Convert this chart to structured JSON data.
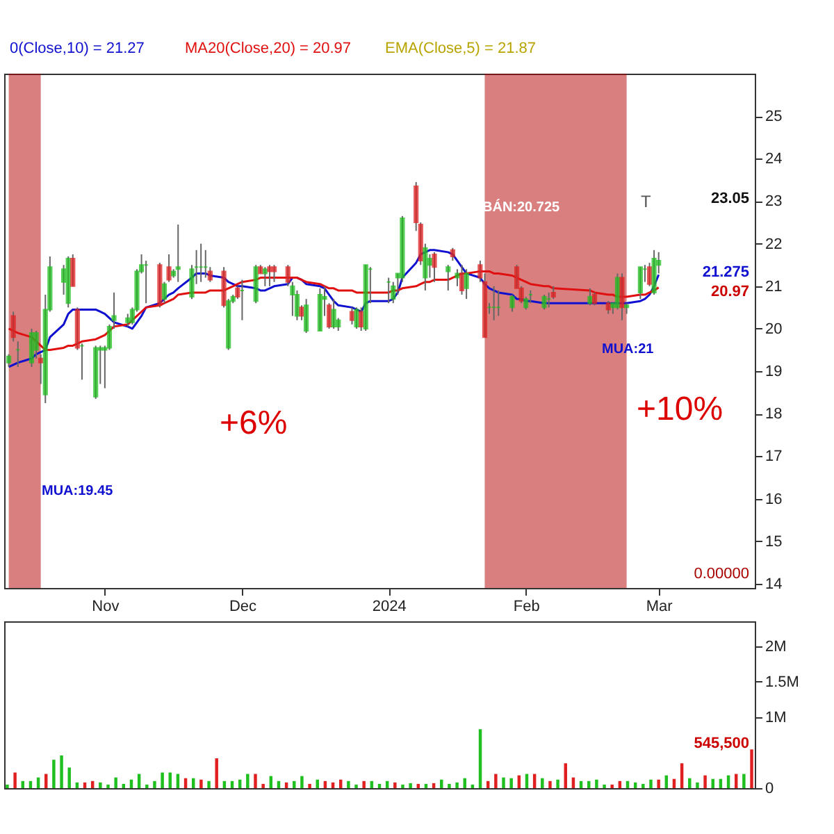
{
  "chart_data": [
    {
      "type": "candlestick",
      "legend": "top left",
      "x": [
        "2023-10-11",
        "2023-10-12",
        "2023-10-13",
        "2023-10-16",
        "2023-10-17",
        "2023-10-18",
        "2023-10-19",
        "2023-10-20",
        "2023-10-23",
        "2023-10-24",
        "2023-10-25",
        "2023-10-26",
        "2023-10-27",
        "2023-10-30",
        "2023-10-31",
        "2023-11-01",
        "2023-11-02",
        "2023-11-03",
        "2023-11-06",
        "2023-11-07",
        "2023-11-08",
        "2023-11-09",
        "2023-11-10",
        "2023-11-13",
        "2023-11-14",
        "2023-11-15",
        "2023-11-16",
        "2023-11-17",
        "2023-11-20",
        "2023-11-21",
        "2023-11-22",
        "2023-11-23",
        "2023-11-24",
        "2023-11-27",
        "2023-11-28",
        "2023-11-29",
        "2023-11-30",
        "2023-12-01",
        "2023-12-04",
        "2023-12-05",
        "2023-12-06",
        "2023-12-07",
        "2023-12-08",
        "2023-12-11",
        "2023-12-12",
        "2023-12-13",
        "2023-12-14",
        "2023-12-15",
        "2023-12-18",
        "2023-12-19",
        "2023-12-20",
        "2023-12-21",
        "2023-12-22",
        "2023-12-25",
        "2023-12-26",
        "2023-12-27",
        "2023-12-28",
        "2023-12-29",
        "2024-01-02",
        "2024-01-03",
        "2024-01-04",
        "2024-01-05",
        "2024-01-08",
        "2024-01-09",
        "2024-01-10",
        "2024-01-11",
        "2024-01-12",
        "2024-01-15",
        "2024-01-16",
        "2024-01-17",
        "2024-01-18",
        "2024-01-19",
        "2024-01-22",
        "2024-01-23",
        "2024-01-24",
        "2024-01-25",
        "2024-01-26",
        "2024-01-29",
        "2024-01-30",
        "2024-01-31",
        "2024-02-01",
        "2024-02-02",
        "2024-02-05",
        "2024-02-06",
        "2024-02-07",
        "2024-02-15",
        "2024-02-16",
        "2024-02-19",
        "2024-02-20",
        "2024-02-21",
        "2024-02-22",
        "2024-02-23",
        "2024-02-26",
        "2024-02-27",
        "2024-02-28",
        "2024-02-29",
        "2024-03-01"
      ],
      "ohlc": [
        [
          19.2,
          19.4,
          19.1,
          19.35
        ],
        [
          20.3,
          20.4,
          19.7,
          19.8
        ],
        [
          19.5,
          19.7,
          19.1,
          19.5
        ],
        [
          19.2,
          20.0,
          19.1,
          19.9
        ],
        [
          19.5,
          19.95,
          19.3,
          19.9
        ],
        [
          19.3,
          19.4,
          18.7,
          19.2
        ],
        [
          18.45,
          20.8,
          18.25,
          20.45
        ],
        [
          20.45,
          21.7,
          20.4,
          21.45
        ],
        [
          21.1,
          21.5,
          20.8,
          21.4
        ],
        [
          20.6,
          21.7,
          20.5,
          21.65
        ],
        [
          21.65,
          21.75,
          21.0,
          21.0
        ],
        [
          20.45,
          20.5,
          19.5,
          19.55
        ],
        [
          19.6,
          19.65,
          18.8,
          19.6
        ],
        [
          18.4,
          19.6,
          18.35,
          19.55
        ],
        [
          19.5,
          19.6,
          18.7,
          19.55
        ],
        [
          19.5,
          19.6,
          18.6,
          19.55
        ],
        [
          19.55,
          20.1,
          19.5,
          20.05
        ],
        [
          20.2,
          20.85,
          20.0,
          20.3
        ],
        [
          20.15,
          20.35,
          20.05,
          20.25
        ],
        [
          20.15,
          20.5,
          20.1,
          20.45
        ],
        [
          20.45,
          21.4,
          20.4,
          21.35
        ],
        [
          21.35,
          21.75,
          21.3,
          21.5
        ],
        [
          21.5,
          21.6,
          20.6,
          21.5
        ],
        [
          21.5,
          21.55,
          20.5,
          20.55
        ],
        [
          20.7,
          21.1,
          20.6,
          21.05
        ],
        [
          21.45,
          21.75,
          21.1,
          21.15
        ],
        [
          21.25,
          21.4,
          21.2,
          21.35
        ],
        [
          21.4,
          22.45,
          21.1,
          21.45
        ],
        [
          20.75,
          21.5,
          20.7,
          21.4
        ],
        [
          21.45,
          21.85,
          21.05,
          21.45
        ],
        [
          21.45,
          22.0,
          21.1,
          21.45
        ],
        [
          21.45,
          21.85,
          21.2,
          21.45
        ],
        [
          21.35,
          21.45,
          21.1,
          21.15
        ],
        [
          21.35,
          21.45,
          20.5,
          20.55
        ],
        [
          19.55,
          20.7,
          19.5,
          20.65
        ],
        [
          20.65,
          20.8,
          20.6,
          20.75
        ],
        [
          20.95,
          21.0,
          20.7,
          20.75
        ],
        [
          20.9,
          21.15,
          20.2,
          20.9
        ],
        [
          20.65,
          21.5,
          20.6,
          21.45
        ],
        [
          21.45,
          21.5,
          21.3,
          21.3
        ],
        [
          21.3,
          21.45,
          21.0,
          21.4
        ],
        [
          21.45,
          21.5,
          21.0,
          21.35
        ],
        [
          21.45,
          21.5,
          21.1,
          21.35
        ],
        [
          21.45,
          21.5,
          21.0,
          21.1
        ],
        [
          20.8,
          21.1,
          20.3,
          21.0
        ],
        [
          20.3,
          20.9,
          20.2,
          20.8
        ],
        [
          20.5,
          20.55,
          20.2,
          20.3
        ],
        [
          19.95,
          20.7,
          19.9,
          20.55
        ],
        [
          19.95,
          20.95,
          19.95,
          20.8
        ],
        [
          20.7,
          21.0,
          20.3,
          20.75
        ],
        [
          20.55,
          20.6,
          20.0,
          20.05
        ],
        [
          20.05,
          20.7,
          20.0,
          20.45
        ],
        [
          20.05,
          20.25,
          19.95,
          20.2
        ],
        [
          20.4,
          20.5,
          20.1,
          20.2
        ],
        [
          20.05,
          20.5,
          20.0,
          20.45
        ],
        [
          20.4,
          20.5,
          19.95,
          20.05
        ],
        [
          20.0,
          21.5,
          19.95,
          21.5
        ],
        [
          21.4,
          21.45,
          20.6,
          21.4
        ],
        [
          21.1,
          21.2,
          20.6,
          21.1
        ],
        [
          20.7,
          21.1,
          20.6,
          21.0
        ],
        [
          21.2,
          21.3,
          20.8,
          21.3
        ],
        [
          21.2,
          22.65,
          21.1,
          22.6
        ],
        [
          23.35,
          23.45,
          22.3,
          22.5
        ],
        [
          22.45,
          22.5,
          21.5,
          21.6
        ],
        [
          21.2,
          22.0,
          20.9,
          21.9
        ],
        [
          21.5,
          21.75,
          21.2,
          21.65
        ],
        [
          21.75,
          21.8,
          21.1,
          21.45
        ],
        [
          21.35,
          21.5,
          20.9,
          21.45
        ],
        [
          21.85,
          21.9,
          21.6,
          21.7
        ],
        [
          21.2,
          21.4,
          21.0,
          21.3
        ],
        [
          21.3,
          21.5,
          20.8,
          20.9
        ],
        [
          20.95,
          21.4,
          20.7,
          21.3
        ],
        [
          21.5,
          21.6,
          21.1,
          21.2
        ],
        [
          21.1,
          21.3,
          19.8,
          19.8
        ],
        [
          20.5,
          20.6,
          20.35,
          20.5
        ],
        [
          20.5,
          21.0,
          20.2,
          20.5
        ],
        [
          20.5,
          20.9,
          20.3,
          20.5
        ],
        [
          20.5,
          20.8,
          20.4,
          20.75
        ],
        [
          21.45,
          21.5,
          20.95,
          20.95
        ],
        [
          20.95,
          21.0,
          20.6,
          20.65
        ],
        [
          20.5,
          20.75,
          20.45,
          20.7
        ],
        [
          20.8,
          20.9,
          20.6,
          20.8
        ],
        [
          20.5,
          20.8,
          20.45,
          20.75
        ],
        [
          20.7,
          20.85,
          20.5,
          20.7
        ],
        [
          20.85,
          21.0,
          20.7,
          20.75
        ],
        [
          20.6,
          20.95,
          20.55,
          20.75
        ],
        [
          20.8,
          20.85,
          20.55,
          20.6
        ],
        [
          20.6,
          20.65,
          20.35,
          20.45
        ],
        [
          20.5,
          20.6,
          20.35,
          20.6
        ],
        [
          20.5,
          21.3,
          20.45,
          21.2
        ],
        [
          21.2,
          21.3,
          20.2,
          20.5
        ],
        [
          20.5,
          20.6,
          20.35,
          20.55
        ],
        [
          20.85,
          21.45,
          20.7,
          21.45
        ],
        [
          21.4,
          21.5,
          21.1,
          21.4
        ],
        [
          21.45,
          21.55,
          21.0,
          21.05
        ],
        [
          20.85,
          21.85,
          20.8,
          21.65
        ],
        [
          21.5,
          21.8,
          21.3,
          21.6
        ]
      ],
      "colors": [
        "#1fbf1f",
        "#e02020",
        "#1fbf1f",
        "#1fbf1f",
        "#1fbf1f",
        "#e02020",
        "#1fbf1f",
        "#1fbf1f",
        "#1fbf1f",
        "#1fbf1f",
        "#e02020",
        "#e02020",
        "#1fbf1f",
        "#1fbf1f",
        "#1fbf1f",
        "#1fbf1f",
        "#1fbf1f",
        "#1fbf1f",
        "#1fbf1f",
        "#1fbf1f",
        "#1fbf1f",
        "#1fbf1f",
        "#1fbf1f",
        "#e02020",
        "#1fbf1f",
        "#e02020",
        "#1fbf1f",
        "#1fbf1f",
        "#1fbf1f",
        "#1fbf1f",
        "#1fbf1f",
        "#1fbf1f",
        "#e02020",
        "#e02020",
        "#1fbf1f",
        "#1fbf1f",
        "#e02020",
        "#1fbf1f",
        "#1fbf1f",
        "#e02020",
        "#1fbf1f",
        "#e02020",
        "#e02020",
        "#e02020",
        "#1fbf1f",
        "#1fbf1f",
        "#e02020",
        "#1fbf1f",
        "#1fbf1f",
        "#1fbf1f",
        "#e02020",
        "#1fbf1f",
        "#1fbf1f",
        "#e02020",
        "#1fbf1f",
        "#e02020",
        "#1fbf1f",
        "#1fbf1f",
        "#1fbf1f",
        "#1fbf1f",
        "#1fbf1f",
        "#1fbf1f",
        "#e02020",
        "#e02020",
        "#1fbf1f",
        "#1fbf1f",
        "#e02020",
        "#1fbf1f",
        "#e02020",
        "#1fbf1f",
        "#e02020",
        "#1fbf1f",
        "#e02020",
        "#e02020",
        "#1fbf1f",
        "#1fbf1f",
        "#1fbf1f",
        "#1fbf1f",
        "#e02020",
        "#e02020",
        "#1fbf1f",
        "#1fbf1f",
        "#1fbf1f",
        "#1fbf1f",
        "#e02020",
        "#1fbf1f",
        "#e02020",
        "#e02020",
        "#1fbf1f",
        "#1fbf1f",
        "#e02020",
        "#1fbf1f",
        "#1fbf1f",
        "#1fbf1f",
        "#e02020",
        "#1fbf1f",
        "#1fbf1f"
      ],
      "series": [
        {
          "type": "line",
          "name": "0(Close,10) = 21.27",
          "color": "#1010d0",
          "values": [
            19.1,
            19.15,
            19.2,
            19.3,
            19.4,
            19.45,
            19.5,
            19.8,
            20.1,
            20.35,
            20.45,
            20.45,
            20.45,
            20.45,
            20.4,
            20.35,
            20.25,
            20.15,
            20.05,
            20.0,
            20.15,
            20.3,
            20.5,
            20.6,
            20.7,
            20.8,
            20.85,
            20.95,
            21.2,
            21.3,
            21.3,
            21.3,
            21.25,
            21.2,
            21.1,
            21.05,
            21.0,
            21.0,
            20.95,
            20.9,
            20.9,
            20.95,
            21.0,
            21.05,
            21.2,
            21.2,
            21.15,
            21.05,
            21.0,
            20.95,
            20.8,
            20.65,
            20.55,
            20.5,
            20.45,
            20.4,
            20.6,
            20.65,
            20.65,
            20.7,
            20.85,
            21.2,
            21.55,
            21.75,
            21.8,
            21.85,
            21.85,
            21.8,
            21.75,
            21.6,
            21.45,
            21.3,
            21.2,
            21.05,
            20.95,
            20.9,
            20.85,
            20.8,
            20.7,
            20.7,
            20.65,
            20.65,
            20.6,
            20.6,
            20.6,
            20.6,
            20.6,
            20.6,
            20.6,
            20.6,
            20.6,
            20.6,
            20.65,
            20.7,
            20.8,
            21.0,
            21.27
          ]
        },
        {
          "type": "line",
          "name": "MA20(Close,20) = 20.97",
          "color": "#e01010",
          "values": [
            20.0,
            19.95,
            19.9,
            19.8,
            19.7,
            19.6,
            19.5,
            19.5,
            19.55,
            19.6,
            19.6,
            19.65,
            19.7,
            19.75,
            19.8,
            19.85,
            19.95,
            20.05,
            20.1,
            20.2,
            20.3,
            20.4,
            20.5,
            20.55,
            20.6,
            20.65,
            20.7,
            20.8,
            20.85,
            20.85,
            20.85,
            20.85,
            20.9,
            20.9,
            20.95,
            21.0,
            21.05,
            21.1,
            21.15,
            21.2,
            21.2,
            21.2,
            21.2,
            21.2,
            21.2,
            21.2,
            21.15,
            21.1,
            21.05,
            21.0,
            20.95,
            20.95,
            20.9,
            20.9,
            20.85,
            20.85,
            20.85,
            20.85,
            20.85,
            20.9,
            20.9,
            20.95,
            21.0,
            21.05,
            21.1,
            21.1,
            21.15,
            21.15,
            21.2,
            21.25,
            21.3,
            21.3,
            21.35,
            21.35,
            21.35,
            21.3,
            21.3,
            21.25,
            21.2,
            21.15,
            21.1,
            21.05,
            21.0,
            21.0,
            20.95,
            20.9,
            20.85,
            20.8,
            20.8,
            20.75,
            20.75,
            20.75,
            20.8,
            20.8,
            20.85,
            20.9,
            20.97
          ]
        }
      ],
      "bands": [
        {
          "axis": "x",
          "from": "2023-10-11",
          "to": "2023-10-18",
          "color": "#b40000"
        },
        {
          "axis": "x",
          "from": "2024-01-23",
          "to": "2024-02-23",
          "color": "#b40000"
        }
      ],
      "annotations": [
        "EMA(Close,5) = 21.87",
        "+6%",
        "+10%",
        "T",
        "0.00000",
        "MUA:19.45",
        "BÁN:20.725",
        "MUA:21",
        "23.05",
        "21.275",
        "20.97"
      ],
      "xlim": [
        "2023-10-10",
        "2024-03-22"
      ],
      "ylim": [
        13.9,
        26
      ],
      "yticks": [
        14,
        15,
        16,
        17,
        18,
        19,
        20,
        21,
        22,
        23,
        24,
        25
      ],
      "xticks": [
        {
          "value": "2023-11-01",
          "label": "Nov"
        },
        {
          "value": "2023-12-01",
          "label": "Dec"
        },
        {
          "value": "2024-01-02",
          "label": "2024"
        },
        {
          "value": "2024-02-01",
          "label": "Feb"
        },
        {
          "value": "2024-03-01",
          "label": "Mar"
        }
      ]
    },
    {
      "type": "bar",
      "tick_labels": "y",
      "categories": [
        null,
        null,
        null,
        null,
        null,
        null,
        null,
        null,
        null,
        null,
        null,
        null,
        null,
        null,
        null,
        null,
        null,
        null,
        null,
        null,
        null,
        null,
        null,
        null,
        null,
        null,
        null,
        null,
        null,
        null,
        null,
        null,
        null,
        null,
        null,
        null,
        null,
        null,
        null,
        null,
        null,
        null,
        null,
        null,
        null,
        null,
        null,
        null,
        null,
        null,
        null,
        null,
        null,
        null,
        null,
        null,
        null,
        null,
        null,
        null,
        null,
        null,
        null,
        null,
        null,
        null,
        null,
        null,
        null,
        null,
        null,
        null,
        null,
        null,
        null,
        null,
        null,
        null,
        null,
        null,
        null,
        null,
        null,
        null,
        null,
        null,
        null,
        null,
        null,
        null,
        null,
        null,
        null,
        null,
        null,
        null,
        null
      ],
      "values": [
        50000,
        220000,
        100000,
        100000,
        150000,
        200000,
        400000,
        460000,
        290000,
        80000,
        80000,
        100000,
        80000,
        50000,
        150000,
        60000,
        120000,
        200000,
        50000,
        100000,
        220000,
        220000,
        200000,
        140000,
        140000,
        120000,
        100000,
        420000,
        100000,
        100000,
        120000,
        200000,
        200000,
        60000,
        170000,
        100000,
        80000,
        100000,
        170000,
        60000,
        120000,
        100000,
        80000,
        120000,
        100000,
        50000,
        100000,
        100000,
        60000,
        100000,
        80000,
        50000,
        70000,
        60000,
        60000,
        70000,
        120000,
        60000,
        80000,
        140000,
        50000,
        830000,
        100000,
        200000,
        150000,
        140000,
        180000,
        200000,
        200000,
        140000,
        100000,
        120000,
        350000,
        150000,
        100000,
        100000,
        120000,
        50000,
        50000,
        100000,
        100000,
        80000,
        60000,
        120000,
        120000,
        180000,
        130000,
        350000,
        140000,
        80000,
        180000,
        130000,
        130000,
        180000,
        200000,
        200000,
        545500
      ],
      "colors": [
        "#1fbf1f",
        "#e02020",
        "#1fbf1f",
        "#1fbf1f",
        "#1fbf1f",
        "#e02020",
        "#1fbf1f",
        "#1fbf1f",
        "#1fbf1f",
        "#1fbf1f",
        "#e02020",
        "#e02020",
        "#1fbf1f",
        "#1fbf1f",
        "#1fbf1f",
        "#1fbf1f",
        "#1fbf1f",
        "#1fbf1f",
        "#1fbf1f",
        "#1fbf1f",
        "#1fbf1f",
        "#1fbf1f",
        "#1fbf1f",
        "#e02020",
        "#1fbf1f",
        "#e02020",
        "#1fbf1f",
        "#e02020",
        "#1fbf1f",
        "#1fbf1f",
        "#1fbf1f",
        "#1fbf1f",
        "#e02020",
        "#e02020",
        "#1fbf1f",
        "#1fbf1f",
        "#e02020",
        "#1fbf1f",
        "#1fbf1f",
        "#e02020",
        "#1fbf1f",
        "#e02020",
        "#e02020",
        "#e02020",
        "#1fbf1f",
        "#1fbf1f",
        "#e02020",
        "#1fbf1f",
        "#1fbf1f",
        "#1fbf1f",
        "#e02020",
        "#1fbf1f",
        "#1fbf1f",
        "#e02020",
        "#1fbf1f",
        "#e02020",
        "#1fbf1f",
        "#1fbf1f",
        "#1fbf1f",
        "#1fbf1f",
        "#1fbf1f",
        "#1fbf1f",
        "#e02020",
        "#e02020",
        "#1fbf1f",
        "#1fbf1f",
        "#e02020",
        "#1fbf1f",
        "#e02020",
        "#1fbf1f",
        "#e02020",
        "#1fbf1f",
        "#e02020",
        "#e02020",
        "#1fbf1f",
        "#1fbf1f",
        "#1fbf1f",
        "#1fbf1f",
        "#e02020",
        "#e02020",
        "#1fbf1f",
        "#1fbf1f",
        "#1fbf1f",
        "#1fbf1f",
        "#e02020",
        "#1fbf1f",
        "#e02020",
        "#e02020",
        "#1fbf1f",
        "#1fbf1f",
        "#e02020",
        "#1fbf1f",
        "#1fbf1f",
        "#1fbf1f",
        "#e02020",
        "#1fbf1f",
        "#e02020"
      ],
      "annotations": [
        "545,500"
      ],
      "ylim": [
        0,
        2350000
      ],
      "yticks": [
        0,
        {
          "value": 1000000,
          "label": "1M"
        },
        {
          "value": 1500000,
          "label": "1.5M"
        },
        {
          "value": 2000000,
          "label": "2M"
        }
      ]
    }
  ]
}
